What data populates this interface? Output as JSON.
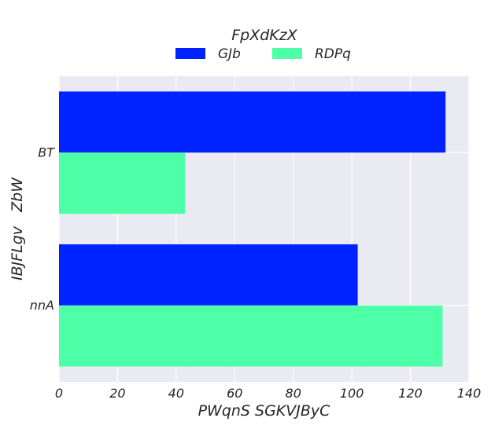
{
  "chart_data": {
    "type": "bar",
    "orientation": "horizontal",
    "categories": [
      "BT",
      "nnA"
    ],
    "series": [
      {
        "name": "GJb",
        "values": [
          132,
          102
        ],
        "color": "#0022ff"
      },
      {
        "name": "RDPq",
        "values": [
          43,
          131
        ],
        "color": "#4dffa6"
      }
    ],
    "xlabel": "PWqnS SGKVJByC",
    "ylabel": "IBJFLgv   ZbW",
    "xlim": [
      0,
      140
    ],
    "xticks": [
      "0",
      "20",
      "40",
      "60",
      "80",
      "100",
      "120",
      "140"
    ],
    "legend": {
      "title": "FpXdKzX",
      "placement": "top-center"
    },
    "grid": true,
    "background": "#eaeaf2"
  }
}
